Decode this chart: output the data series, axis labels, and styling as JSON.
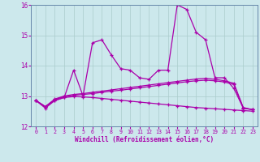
{
  "title": "",
  "xlabel": "Windchill (Refroidissement éolien,°C)",
  "bg_color": "#cce8ec",
  "line_color": "#aa00aa",
  "grid_color": "#aacccc",
  "spine_color": "#6688aa",
  "xlim": [
    -0.5,
    23.5
  ],
  "ylim": [
    12.0,
    16.0
  ],
  "yticks": [
    12,
    13,
    14,
    15,
    16
  ],
  "xticks": [
    0,
    1,
    2,
    3,
    4,
    5,
    6,
    7,
    8,
    9,
    10,
    11,
    12,
    13,
    14,
    15,
    16,
    17,
    18,
    19,
    20,
    21,
    22,
    23
  ],
  "line1": [
    12.85,
    12.6,
    12.85,
    12.95,
    13.85,
    13.0,
    14.75,
    14.85,
    14.35,
    13.9,
    13.85,
    13.6,
    13.55,
    13.85,
    13.85,
    16.0,
    15.85,
    15.1,
    14.85,
    13.6,
    13.6,
    13.25,
    12.6,
    12.55
  ],
  "line2": [
    12.85,
    12.65,
    12.9,
    13.0,
    13.05,
    13.08,
    13.12,
    13.16,
    13.2,
    13.24,
    13.28,
    13.32,
    13.36,
    13.4,
    13.44,
    13.48,
    13.52,
    13.56,
    13.58,
    13.55,
    13.5,
    13.42,
    12.62,
    12.55
  ],
  "line3": [
    12.85,
    12.65,
    12.88,
    12.98,
    13.02,
    13.05,
    13.08,
    13.12,
    13.16,
    13.19,
    13.23,
    13.27,
    13.31,
    13.35,
    13.39,
    13.43,
    13.47,
    13.5,
    13.52,
    13.5,
    13.46,
    13.38,
    12.6,
    12.55
  ],
  "line4": [
    12.85,
    12.65,
    12.85,
    12.95,
    12.98,
    12.97,
    12.95,
    12.92,
    12.89,
    12.86,
    12.83,
    12.8,
    12.77,
    12.74,
    12.71,
    12.68,
    12.65,
    12.62,
    12.6,
    12.58,
    12.56,
    12.54,
    12.52,
    12.5
  ]
}
